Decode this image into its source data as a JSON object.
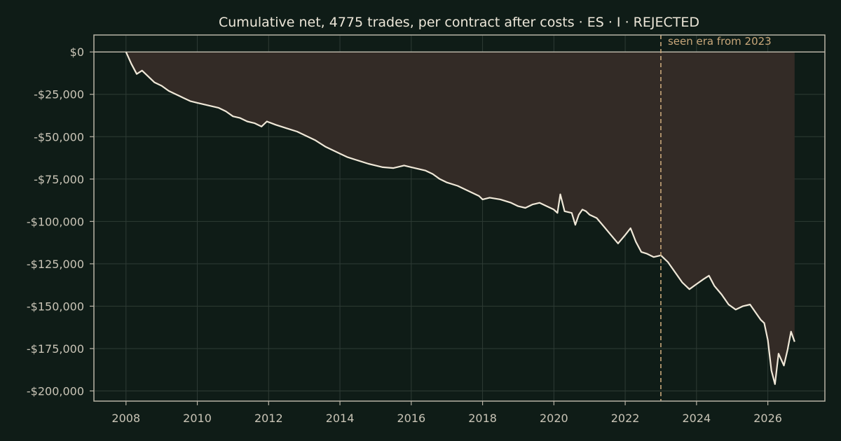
{
  "chart_data": {
    "type": "line",
    "title": "Cumulative net, 4775 trades, per contract after costs  ·  ES · I · REJECTED",
    "xlabel": "",
    "ylabel": "",
    "xlim": [
      2007.1,
      2027.6
    ],
    "ylim": [
      -206000,
      10000
    ],
    "x_ticks": [
      2008,
      2010,
      2012,
      2014,
      2016,
      2018,
      2020,
      2022,
      2024,
      2026
    ],
    "x_tick_labels": [
      "2008",
      "2010",
      "2012",
      "2014",
      "2016",
      "2018",
      "2020",
      "2022",
      "2024",
      "2026"
    ],
    "y_ticks": [
      0,
      -25000,
      -50000,
      -75000,
      -100000,
      -125000,
      -150000,
      -175000,
      -200000
    ],
    "y_tick_labels": [
      "$0",
      "-$25,000",
      "-$50,000",
      "-$75,000",
      "-$100,000",
      "-$125,000",
      "-$150,000",
      "-$175,000",
      "-$200,000"
    ],
    "grid": true,
    "zero_line": 0,
    "fill_to_zero": true,
    "annotation": {
      "x": 2023.0,
      "label": "seen era from 2023",
      "style": "dashed vertical line"
    },
    "series": [
      {
        "x": [
          2008.0,
          2008.15,
          2008.3,
          2008.45,
          2008.6,
          2008.8,
          2009.0,
          2009.2,
          2009.4,
          2009.6,
          2009.8,
          2010.0,
          2010.2,
          2010.4,
          2010.6,
          2010.8,
          2011.0,
          2011.2,
          2011.4,
          2011.6,
          2011.8,
          2011.95,
          2012.2,
          2012.5,
          2012.8,
          2013.0,
          2013.3,
          2013.6,
          2014.0,
          2014.2,
          2014.5,
          2014.8,
          2015.0,
          2015.2,
          2015.5,
          2015.8,
          2016.0,
          2016.2,
          2016.4,
          2016.6,
          2016.8,
          2017.0,
          2017.3,
          2017.6,
          2017.9,
          2018.0,
          2018.2,
          2018.5,
          2018.8,
          2019.0,
          2019.2,
          2019.4,
          2019.6,
          2019.8,
          2020.0,
          2020.1,
          2020.18,
          2020.3,
          2020.5,
          2020.6,
          2020.7,
          2020.8,
          2020.9,
          2021.0,
          2021.2,
          2021.4,
          2021.6,
          2021.8,
          2022.0,
          2022.15,
          2022.3,
          2022.45,
          2022.6,
          2022.8,
          2023.0,
          2023.2,
          2023.4,
          2023.6,
          2023.8,
          2024.0,
          2024.2,
          2024.35,
          2024.5,
          2024.7,
          2024.9,
          2025.1,
          2025.3,
          2025.5,
          2025.7,
          2025.8,
          2025.9,
          2026.0,
          2026.1,
          2026.2,
          2026.3,
          2026.45,
          2026.55,
          2026.65,
          2026.75
        ],
        "y": [
          0,
          -7000,
          -13000,
          -11000,
          -14000,
          -18000,
          -20000,
          -23000,
          -25000,
          -27000,
          -29000,
          -30000,
          -31000,
          -32000,
          -33000,
          -35000,
          -38000,
          -39000,
          -41000,
          -42000,
          -44000,
          -41000,
          -43000,
          -45000,
          -47000,
          -49000,
          -52000,
          -56000,
          -60000,
          -62000,
          -64000,
          -66000,
          -67000,
          -68000,
          -68500,
          -67000,
          -68000,
          -69000,
          -70000,
          -72000,
          -75000,
          -77000,
          -79000,
          -82000,
          -85000,
          -87000,
          -86000,
          -87000,
          -89000,
          -91000,
          -92000,
          -90000,
          -89000,
          -91000,
          -93000,
          -95000,
          -84000,
          -94000,
          -95000,
          -102000,
          -96000,
          -93000,
          -94000,
          -96000,
          -98000,
          -103000,
          -108000,
          -113000,
          -108000,
          -104000,
          -112000,
          -118000,
          -119000,
          -121000,
          -120000,
          -124000,
          -130000,
          -136000,
          -140000,
          -137000,
          -134000,
          -132000,
          -138000,
          -143000,
          -149000,
          -152000,
          -150000,
          -149000,
          -155000,
          -158000,
          -160000,
          -170000,
          -188000,
          -196000,
          -178000,
          -185000,
          -176000,
          -165000,
          -171000
        ]
      }
    ]
  },
  "colors": {
    "background": "#0f1c17",
    "line": "#f0e8d8",
    "fill": "#332b26",
    "axis": "#b8b3a6",
    "grid": "#2e3b35",
    "annotation": "#c8a77a",
    "text": "#c9c4b6"
  }
}
